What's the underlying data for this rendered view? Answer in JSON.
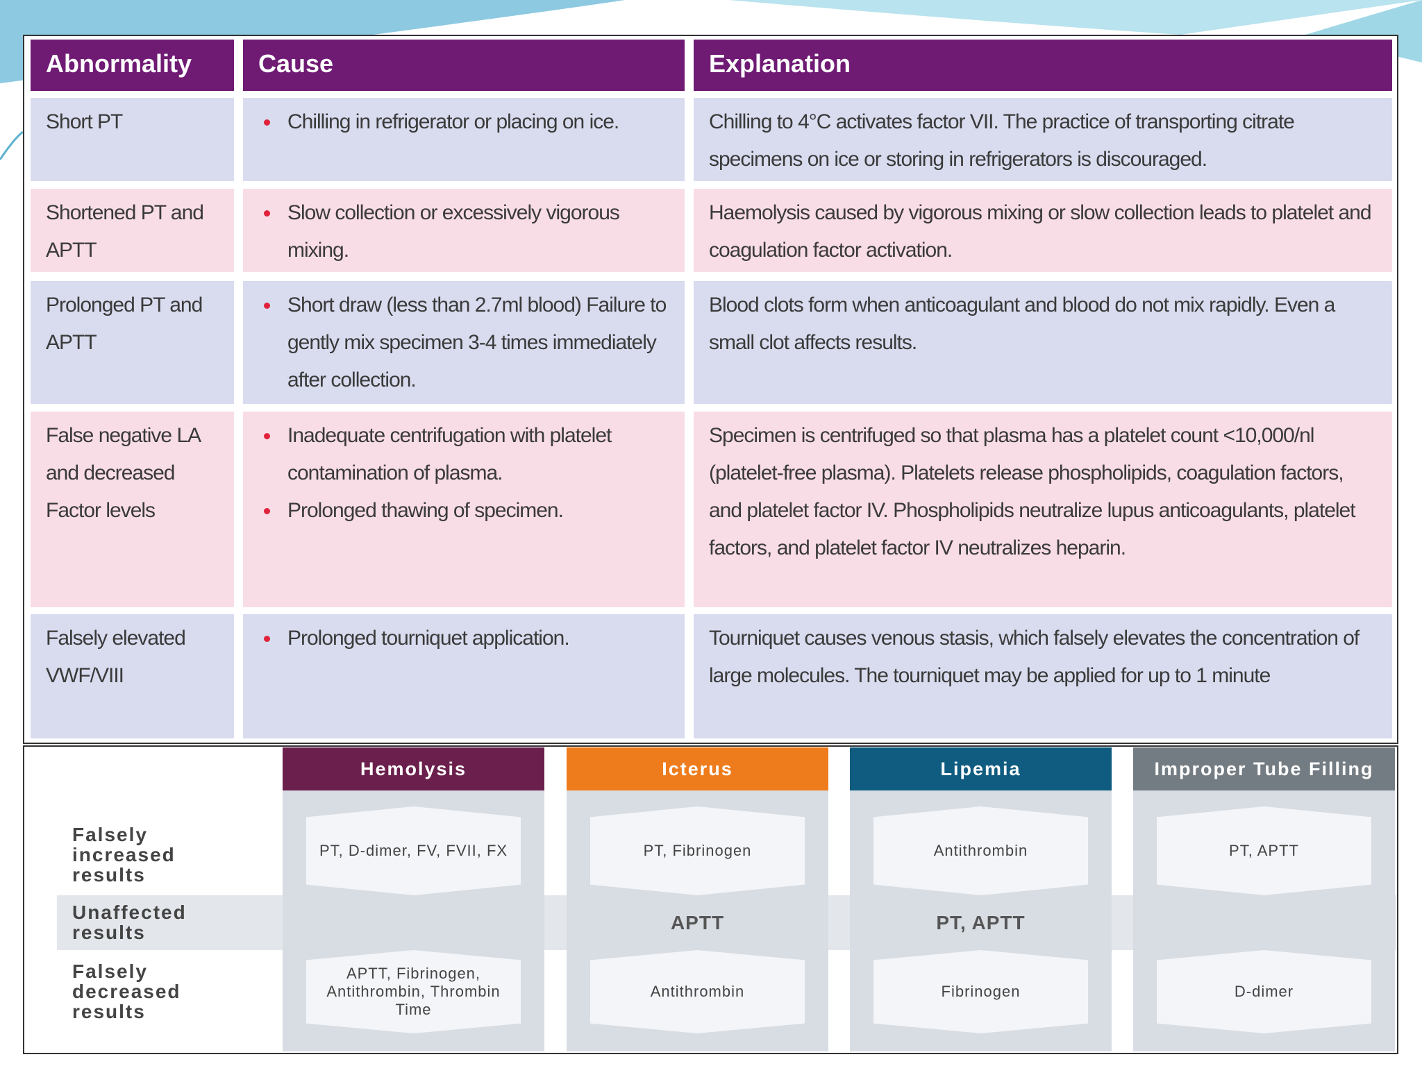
{
  "table": {
    "headers": [
      "Abnormality",
      "Cause",
      "Explanation"
    ],
    "rows": [
      {
        "abnormality": "Short PT",
        "causes": [
          "Chilling in refrigerator or placing on ice."
        ],
        "explanation": "Chilling to 4°C activates factor VII. The practice of transporting citrate specimens on ice or storing in refrigerators is discouraged."
      },
      {
        "abnormality": "Shortened PT and APTT",
        "causes": [
          "Slow collection or excessively vigorous mixing."
        ],
        "explanation": "Haemolysis caused by vigorous mixing or slow collection leads to platelet and coagulation factor activation."
      },
      {
        "abnormality": "Prolonged PT and APTT",
        "causes": [
          "Short draw (less than 2.7ml blood) Failure to gently mix specimen 3-4 times immediately after collection."
        ],
        "explanation": "Blood clots form when anticoagulant and blood do not mix rapidly. Even a small clot affects results."
      },
      {
        "abnormality": "False negative LA and decreased Factor levels",
        "causes": [
          "Inadequate centrifugation with platelet contamination of plasma.",
          "Prolonged thawing of specimen."
        ],
        "explanation": "Specimen is centrifuged so that plasma has a platelet count <10,000/nl (platelet-free plasma). Platelets release phospholipids, coagulation factors, and platelet factor IV. Phospholipids neutralize lupus anticoagulants, platelet factors, and platelet factor  IV neutralizes heparin."
      },
      {
        "abnormality": "Falsely elevated VWF/VIII",
        "causes": [
          "Prolonged tourniquet application."
        ],
        "explanation": "Tourniquet causes venous stasis, which falsely elevates the concentration of large molecules. The tourniquet may be applied for up to 1 minute"
      }
    ]
  },
  "panel": {
    "row_labels": [
      "Falsely increased results",
      "Unaffected results",
      "Falsely decreased results"
    ],
    "columns": [
      {
        "title": "Hemolysis",
        "color": "#6b1f4c",
        "cells": [
          "PT, D-dimer, FV, FVII, FX",
          null,
          "APTT, Fibrinogen, Antithrombin, Thrombin Time"
        ]
      },
      {
        "title": "Icterus",
        "color": "#ee7c1c",
        "cells": [
          "PT, Fibrinogen",
          "APTT",
          "Antithrombin"
        ]
      },
      {
        "title": "Lipemia",
        "color": "#0f5c80",
        "cells": [
          "Antithrombin",
          "PT, APTT",
          "Fibrinogen"
        ]
      },
      {
        "title": "Improper Tube Filling",
        "color": "#747c83",
        "cells": [
          "PT, APTT",
          null,
          "D-dimer"
        ]
      }
    ]
  }
}
